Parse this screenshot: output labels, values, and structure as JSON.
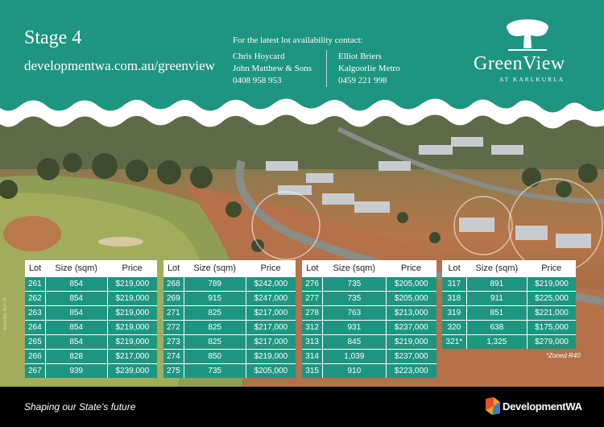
{
  "header": {
    "stage": "Stage 4",
    "url": "developmentwa.com.au/greenview",
    "contact_heading": "For the latest lot availability contact:",
    "contacts": [
      {
        "name": "Chris Hoycard",
        "company": "John Matthew & Sons",
        "phone": "0408 958 953"
      },
      {
        "name": "Elliot Briers",
        "company": "Kalgoorlie Metro",
        "phone": "0459 221 998"
      }
    ],
    "logo": {
      "name": "GreenView",
      "sub": "AT KARLKURLA"
    }
  },
  "colors": {
    "teal": "#1e9580",
    "white": "#ffffff",
    "footer": "#000000"
  },
  "table_headers": {
    "lot": "Lot",
    "size": "Size (sqm)",
    "price": "Price"
  },
  "tables": [
    [
      {
        "lot": "261",
        "size": "854",
        "price": "$219,000"
      },
      {
        "lot": "262",
        "size": "854",
        "price": "$219,000"
      },
      {
        "lot": "263",
        "size": "854",
        "price": "$219,000"
      },
      {
        "lot": "264",
        "size": "854",
        "price": "$219,000"
      },
      {
        "lot": "265",
        "size": "854",
        "price": "$219,000"
      },
      {
        "lot": "266",
        "size": "828",
        "price": "$217,000"
      },
      {
        "lot": "267",
        "size": "939",
        "price": "$239,000"
      }
    ],
    [
      {
        "lot": "268",
        "size": "789",
        "price": "$242,000"
      },
      {
        "lot": "269",
        "size": "915",
        "price": "$247,000"
      },
      {
        "lot": "271",
        "size": "825",
        "price": "$217,000"
      },
      {
        "lot": "272",
        "size": "825",
        "price": "$217,000"
      },
      {
        "lot": "273",
        "size": "825",
        "price": "$217,000"
      },
      {
        "lot": "274",
        "size": "850",
        "price": "$219,000"
      },
      {
        "lot": "275",
        "size": "735",
        "price": "$205,000"
      }
    ],
    [
      {
        "lot": "276",
        "size": "735",
        "price": "$205,000"
      },
      {
        "lot": "277",
        "size": "735",
        "price": "$205,000"
      },
      {
        "lot": "278",
        "size": "763",
        "price": "$213,000"
      },
      {
        "lot": "312",
        "size": "931",
        "price": "$237,000"
      },
      {
        "lot": "313",
        "size": "845",
        "price": "$219,000"
      },
      {
        "lot": "314",
        "size": "1,039",
        "price": "$237,000"
      },
      {
        "lot": "315",
        "size": "910",
        "price": "$223,000"
      }
    ],
    [
      {
        "lot": "317",
        "size": "891",
        "price": "$219,000"
      },
      {
        "lot": "318",
        "size": "911",
        "price": "$225,000"
      },
      {
        "lot": "319",
        "size": "851",
        "price": "$221,000"
      },
      {
        "lot": "320",
        "size": "638",
        "price": "$175,000"
      },
      {
        "lot": "321*",
        "size": "1,325",
        "price": "$279,000"
      }
    ]
  ],
  "footnote": "*Zoned R40",
  "photo_credit": "SERVING NOT PL",
  "footer": {
    "tagline": "Shaping our State's future",
    "brand": "DevelopmentWA"
  }
}
